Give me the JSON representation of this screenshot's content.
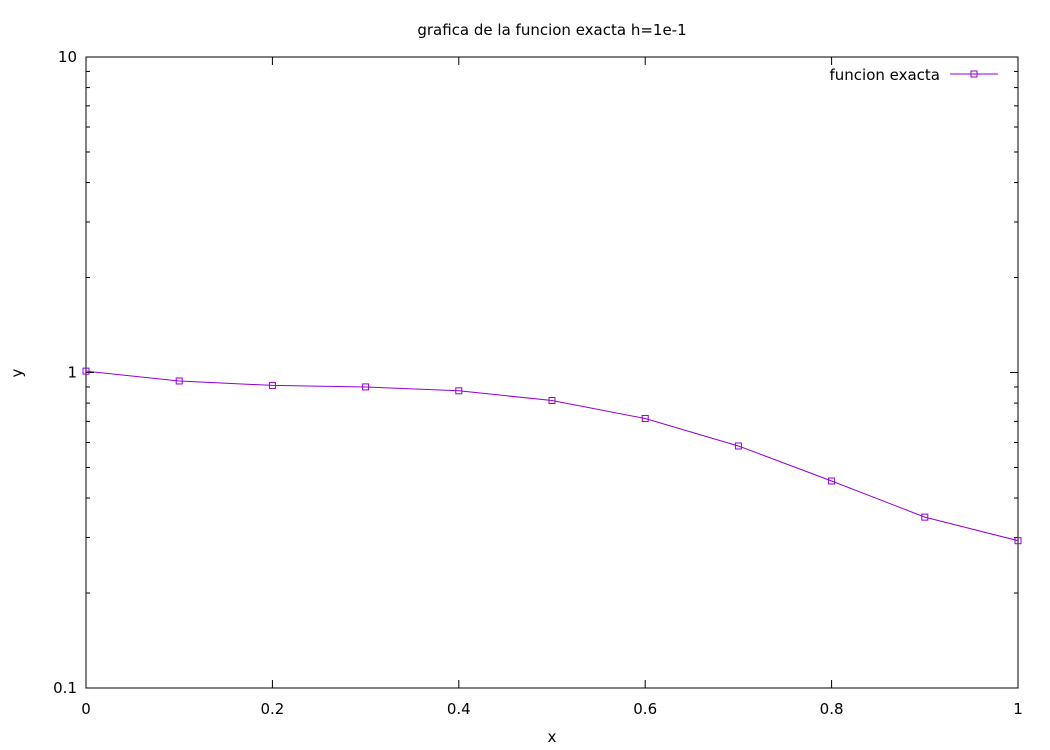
{
  "chart_data": {
    "type": "line",
    "title": "grafica de la funcion exacta h=1e-1",
    "xlabel": "x",
    "ylabel": "y",
    "xlim": [
      0,
      1
    ],
    "ylim": [
      0.1,
      10
    ],
    "yscale": "log",
    "grid": false,
    "legend_position": "top-right",
    "x_ticks": [
      "0",
      "0.2",
      "0.4",
      "0.6",
      "0.8",
      "1"
    ],
    "y_ticks": [
      "0.1",
      "1",
      "10"
    ],
    "series": [
      {
        "name": "funcion exacta",
        "color": "#9400d3",
        "marker": "open-square",
        "x": [
          0,
          0.1,
          0.2,
          0.3,
          0.4,
          0.5,
          0.6,
          0.7,
          0.8,
          0.9,
          1.0
        ],
        "y": [
          1.01,
          0.94,
          0.91,
          0.9,
          0.875,
          0.815,
          0.715,
          0.585,
          0.453,
          0.348,
          0.293
        ]
      }
    ]
  }
}
